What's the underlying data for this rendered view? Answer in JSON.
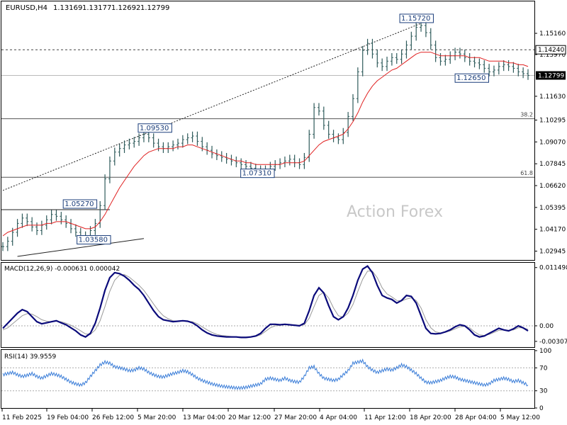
{
  "chart_data": {
    "type": "line",
    "header": {
      "symbol": "EURUSD,H4",
      "open": "1.13169",
      "high": "1.13177",
      "low": "1.12692",
      "close": "1.12799"
    },
    "watermark": "Action Forex",
    "price_axis": {
      "range": [
        1.0245,
        1.1695
      ],
      "ticks": [
        "1.15160",
        "1.13970",
        "1.11630",
        "1.10295",
        "1.09070",
        "1.07845",
        "1.06620",
        "1.05395",
        "1.04170",
        "1.02945"
      ],
      "current_price_label": "1.12799",
      "marked_level_label": "1.14240"
    },
    "time_axis": {
      "labels": [
        "11 Feb 2025",
        "19 Feb 04:00",
        "26 Feb 12:00",
        "5 Mar 20:00",
        "13 Mar 04:00",
        "20 Mar 12:00",
        "27 Mar 20:00",
        "4 Apr 04:00",
        "11 Apr 12:00",
        "18 Apr 20:00",
        "28 Apr 04:00",
        "5 May 12:00"
      ]
    },
    "horizontal_lines": [
      {
        "price": 1.1424,
        "style": "dashed"
      },
      {
        "price": 1.1037,
        "label": "38.2",
        "style": "solid"
      },
      {
        "price": 1.0709,
        "label": "61.8",
        "style": "solid"
      },
      {
        "price": 1.0527,
        "style": "solid-segment"
      },
      {
        "price": 1.12799,
        "style": "current-price"
      }
    ],
    "swing_labels": [
      "1.15720",
      "1.12650",
      "1.09530",
      "1.07310",
      "1.05270",
      "1.03580"
    ],
    "price_series": [
      1.032,
      1.035,
      1.04,
      1.045,
      1.048,
      1.046,
      1.043,
      1.041,
      1.044,
      1.047,
      1.05,
      1.049,
      1.047,
      1.045,
      1.042,
      1.04,
      1.038,
      1.037,
      1.041,
      1.045,
      1.055,
      1.07,
      1.08,
      1.085,
      1.087,
      1.089,
      1.09,
      1.091,
      1.093,
      1.095,
      1.093,
      1.09,
      1.088,
      1.087,
      1.088,
      1.089,
      1.09,
      1.092,
      1.093,
      1.094,
      1.091,
      1.088,
      1.086,
      1.084,
      1.083,
      1.082,
      1.081,
      1.08,
      1.079,
      1.078,
      1.077,
      1.076,
      1.075,
      1.074,
      1.075,
      1.077,
      1.078,
      1.079,
      1.08,
      1.081,
      1.079,
      1.078,
      1.082,
      1.095,
      1.11,
      1.108,
      1.1,
      1.095,
      1.093,
      1.092,
      1.096,
      1.105,
      1.115,
      1.13,
      1.142,
      1.146,
      1.14,
      1.135,
      1.133,
      1.136,
      1.138,
      1.137,
      1.14,
      1.145,
      1.15,
      1.155,
      1.156,
      1.152,
      1.145,
      1.138,
      1.136,
      1.137,
      1.139,
      1.141,
      1.14,
      1.138,
      1.136,
      1.135,
      1.134,
      1.132,
      1.13,
      1.131,
      1.133,
      1.134,
      1.133,
      1.132,
      1.13,
      1.129,
      1.128
    ],
    "moving_average": {
      "color": "#e02020",
      "values": [
        1.038,
        1.04,
        1.041,
        1.042,
        1.043,
        1.044,
        1.044,
        1.044,
        1.044,
        1.045,
        1.045,
        1.046,
        1.046,
        1.046,
        1.045,
        1.044,
        1.043,
        1.042,
        1.042,
        1.043,
        1.046,
        1.05,
        1.055,
        1.06,
        1.065,
        1.069,
        1.073,
        1.077,
        1.08,
        1.083,
        1.085,
        1.086,
        1.087,
        1.087,
        1.087,
        1.087,
        1.088,
        1.088,
        1.089,
        1.089,
        1.088,
        1.087,
        1.086,
        1.085,
        1.084,
        1.083,
        1.082,
        1.081,
        1.08,
        1.08,
        1.079,
        1.079,
        1.078,
        1.078,
        1.078,
        1.078,
        1.078,
        1.078,
        1.079,
        1.079,
        1.079,
        1.079,
        1.08,
        1.083,
        1.086,
        1.089,
        1.091,
        1.092,
        1.093,
        1.094,
        1.095,
        1.098,
        1.102,
        1.107,
        1.113,
        1.118,
        1.122,
        1.125,
        1.127,
        1.129,
        1.131,
        1.132,
        1.134,
        1.136,
        1.138,
        1.14,
        1.141,
        1.141,
        1.141,
        1.14,
        1.139,
        1.139,
        1.139,
        1.139,
        1.139,
        1.139,
        1.138,
        1.138,
        1.138,
        1.137,
        1.136,
        1.136,
        1.136,
        1.136,
        1.135,
        1.135,
        1.134,
        1.134,
        1.133
      ]
    },
    "macd": {
      "label": "MACD(12,26,9) -0.000631 0.000042",
      "axis_labels": [
        "0.011498",
        "0.00",
        "-0.003072"
      ],
      "range": [
        -0.0042,
        0.0123
      ],
      "main": [
        -0.0005,
        0.0005,
        0.0015,
        0.0025,
        0.0032,
        0.0028,
        0.0018,
        0.0008,
        0.0004,
        0.0006,
        0.0008,
        0.001,
        0.0006,
        0.0002,
        -0.0004,
        -0.001,
        -0.0018,
        -0.0022,
        -0.0015,
        0.0005,
        0.0035,
        0.007,
        0.0095,
        0.0105,
        0.0103,
        0.0098,
        0.009,
        0.008,
        0.0072,
        0.006,
        0.0045,
        0.003,
        0.0018,
        0.0012,
        0.001,
        0.0008,
        0.0009,
        0.001,
        0.0009,
        0.0006,
        0.0,
        -0.0008,
        -0.0014,
        -0.0018,
        -0.002,
        -0.0021,
        -0.0022,
        -0.0022,
        -0.0022,
        -0.0023,
        -0.0023,
        -0.0022,
        -0.002,
        -0.0015,
        -0.0005,
        0.0003,
        0.0003,
        0.0002,
        0.0003,
        0.0002,
        0.0001,
        0.0,
        0.0005,
        0.003,
        0.006,
        0.0075,
        0.0065,
        0.004,
        0.0018,
        0.0012,
        0.0018,
        0.0035,
        0.006,
        0.009,
        0.0112,
        0.0118,
        0.0105,
        0.008,
        0.006,
        0.0055,
        0.0052,
        0.0045,
        0.005,
        0.006,
        0.0058,
        0.0045,
        0.002,
        -0.0005,
        -0.0015,
        -0.0016,
        -0.0015,
        -0.0012,
        -0.0008,
        -0.0002,
        0.0002,
        0.0,
        -0.0008,
        -0.0018,
        -0.0022,
        -0.002,
        -0.0015,
        -0.001,
        -0.0005,
        -0.0008,
        -0.001,
        -0.0006,
        0.0,
        -0.0004,
        -0.001
      ],
      "signal": [
        -0.0008,
        -0.0004,
        0.0004,
        0.0012,
        0.002,
        0.0024,
        0.0023,
        0.0018,
        0.0012,
        0.0009,
        0.0008,
        0.0009,
        0.0008,
        0.0005,
        0.0001,
        -0.0004,
        -0.001,
        -0.0016,
        -0.0017,
        -0.0008,
        0.001,
        0.0038,
        0.0068,
        0.009,
        0.01,
        0.0101,
        0.0096,
        0.0088,
        0.008,
        0.007,
        0.0057,
        0.0043,
        0.003,
        0.002,
        0.0014,
        0.001,
        0.0009,
        0.0009,
        0.0009,
        0.0008,
        0.0004,
        -0.0002,
        -0.0008,
        -0.0013,
        -0.0017,
        -0.0019,
        -0.002,
        -0.0021,
        -0.0022,
        -0.0022,
        -0.0022,
        -0.0022,
        -0.0021,
        -0.0018,
        -0.0011,
        -0.0004,
        0.0,
        0.0001,
        0.0002,
        0.0002,
        0.0002,
        0.0001,
        0.0002,
        0.0015,
        0.0038,
        0.006,
        0.0066,
        0.0055,
        0.0035,
        0.002,
        0.0017,
        0.0025,
        0.0042,
        0.0068,
        0.0092,
        0.0108,
        0.0108,
        0.0095,
        0.0075,
        0.0063,
        0.0057,
        0.005,
        0.0049,
        0.0053,
        0.0055,
        0.005,
        0.0035,
        0.0012,
        -0.0004,
        -0.0012,
        -0.0014,
        -0.0013,
        -0.001,
        -0.0006,
        -0.0002,
        -0.0001,
        -0.0004,
        -0.0012,
        -0.0018,
        -0.0019,
        -0.0017,
        -0.0013,
        -0.0009,
        -0.0008,
        -0.0009,
        -0.0008,
        -0.0004,
        -0.0004,
        -0.0007
      ]
    },
    "rsi": {
      "label": "RSI(14) 39.9559",
      "axis_labels": [
        "100",
        "70",
        "30",
        "0"
      ],
      "range": [
        0,
        100
      ],
      "levels": [
        70,
        30
      ],
      "values": [
        58,
        60,
        62,
        58,
        55,
        57,
        60,
        55,
        52,
        56,
        60,
        58,
        55,
        50,
        45,
        42,
        40,
        44,
        55,
        65,
        75,
        80,
        78,
        72,
        70,
        68,
        65,
        66,
        70,
        68,
        62,
        58,
        55,
        54,
        57,
        60,
        62,
        65,
        63,
        58,
        52,
        48,
        45,
        42,
        40,
        38,
        37,
        36,
        35,
        35,
        36,
        38,
        40,
        42,
        50,
        52,
        50,
        48,
        52,
        48,
        46,
        45,
        55,
        70,
        72,
        60,
        52,
        50,
        48,
        50,
        58,
        65,
        78,
        80,
        82,
        72,
        66,
        62,
        65,
        68,
        66,
        70,
        75,
        72,
        66,
        60,
        52,
        45,
        44,
        46,
        48,
        52,
        55,
        54,
        50,
        48,
        46,
        44,
        42,
        40,
        42,
        48,
        50,
        52,
        50,
        46,
        48,
        44,
        40
      ]
    }
  }
}
